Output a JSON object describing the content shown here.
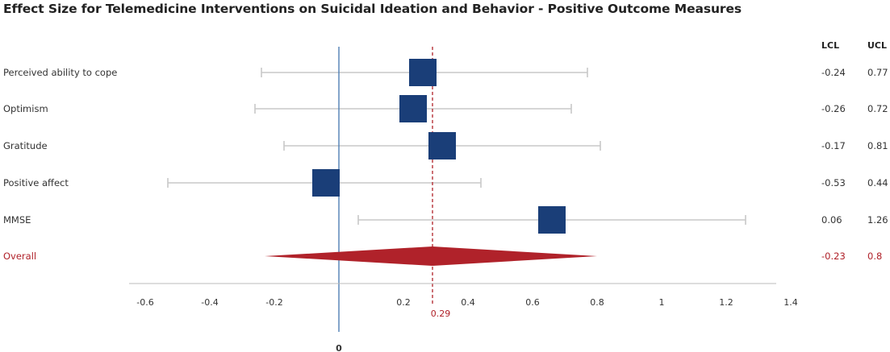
{
  "title": "Effect Size for Telemedicine Interventions on Suicidal Ideation and Behavior - Positive Outcome Measures",
  "chart_data": {
    "type": "forest",
    "title": "Effect Size for Telemedicine Interventions on Suicidal Ideation and Behavior - Positive Outcome Measures",
    "columns": {
      "lcl": "LCL",
      "ucl": "UCL"
    },
    "rows": [
      {
        "label": "Perceived ability to cope",
        "estimate": 0.26,
        "lcl": -0.24,
        "ucl": 0.77,
        "lcl_text": "-0.24",
        "ucl_text": "0.77"
      },
      {
        "label": "Optimism",
        "estimate": 0.23,
        "lcl": -0.26,
        "ucl": 0.72,
        "lcl_text": "-0.26",
        "ucl_text": "0.72"
      },
      {
        "label": "Gratitude",
        "estimate": 0.32,
        "lcl": -0.17,
        "ucl": 0.81,
        "lcl_text": "-0.17",
        "ucl_text": "0.81"
      },
      {
        "label": "Positive affect",
        "estimate": -0.04,
        "lcl": -0.53,
        "ucl": 0.44,
        "lcl_text": "-0.53",
        "ucl_text": "0.44"
      },
      {
        "label": "MMSE",
        "estimate": 0.66,
        "lcl": 0.06,
        "ucl": 1.26,
        "lcl_text": "0.06",
        "ucl_text": "1.26"
      }
    ],
    "overall": {
      "label": "Overall",
      "estimate": 0.29,
      "lcl": -0.23,
      "ucl": 0.8,
      "lcl_text": "-0.23",
      "ucl_text": "0.8"
    },
    "reference_line": {
      "value": 0,
      "label": "0"
    },
    "overall_line": {
      "value": 0.29,
      "label": "0.29"
    },
    "x_ticks": [
      {
        "value": -0.6,
        "label": "-0.6"
      },
      {
        "value": -0.4,
        "label": "-0.4"
      },
      {
        "value": -0.2,
        "label": "-0.2"
      },
      {
        "value": 0.2,
        "label": "0.2"
      },
      {
        "value": 0.4,
        "label": "0.4"
      },
      {
        "value": 0.6,
        "label": "0.6"
      },
      {
        "value": 0.8,
        "label": "0.8"
      },
      {
        "value": 1,
        "label": "1"
      },
      {
        "value": 1.2,
        "label": "1.2"
      },
      {
        "value": 1.4,
        "label": "1.4"
      }
    ],
    "xlim": [
      -0.6,
      1.4
    ],
    "colors": {
      "box": "#1a3e78",
      "whisker": "#c8c8c8",
      "overall": "#b0222a",
      "reference": "#4f7fb5",
      "axis": "#bbbbbb"
    }
  }
}
